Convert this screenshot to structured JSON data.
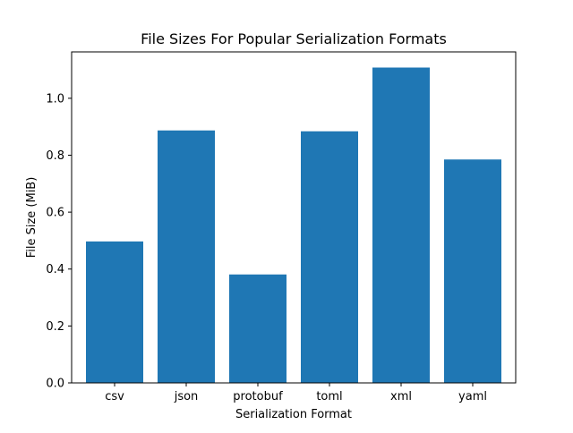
{
  "chart_data": {
    "type": "bar",
    "title": "File Sizes For Popular Serialization Formats",
    "xlabel": "Serialization Format",
    "ylabel": "File Size (MiB)",
    "categories": [
      "csv",
      "json",
      "protobuf",
      "toml",
      "xml",
      "yaml"
    ],
    "values": [
      0.497,
      0.887,
      0.381,
      0.884,
      1.108,
      0.785
    ],
    "ylim": [
      0,
      1.163
    ],
    "yticks": [
      0.0,
      0.2,
      0.4,
      0.6,
      0.8,
      1.0
    ],
    "ytick_labels": [
      "0.0",
      "0.2",
      "0.4",
      "0.6",
      "0.8",
      "1.0"
    ],
    "bar_color": "#1f77b4",
    "grid": false,
    "legend": "none"
  }
}
